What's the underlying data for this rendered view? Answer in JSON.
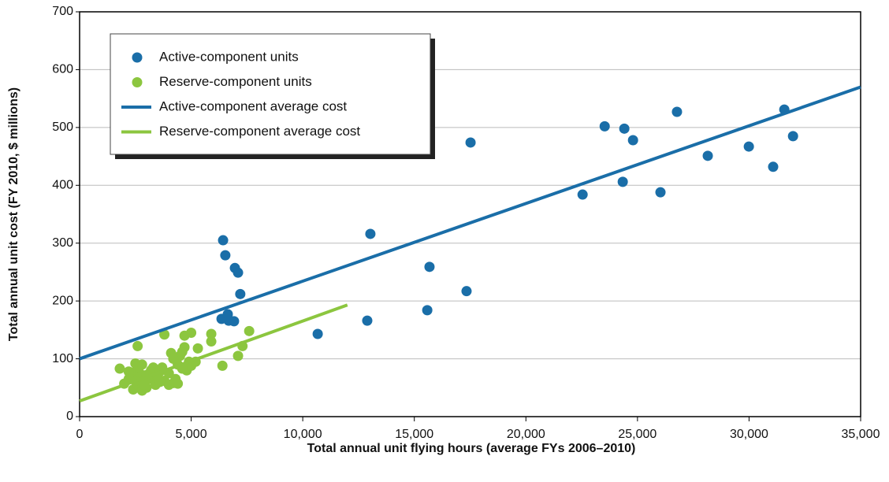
{
  "chart_data": {
    "type": "scatter",
    "xlabel": "Total annual unit flying hours (average FYs 2006–2010)",
    "ylabel": "Total annual unit cost (FY 2010, $ millions)",
    "xlim": [
      0,
      35000
    ],
    "xticks": [
      0,
      {
        "value": 5000,
        "label": "5,000"
      },
      {
        "value": 10000,
        "label": "10,000"
      },
      {
        "value": 15000,
        "label": "15,000"
      },
      {
        "value": 20000,
        "label": "20,000"
      },
      {
        "value": 25000,
        "label": "25,000"
      },
      {
        "value": 30000,
        "label": "30,000"
      },
      {
        "value": 35000,
        "label": "35,000"
      }
    ],
    "ylim": [
      0,
      700
    ],
    "yticks": [
      0,
      100,
      200,
      300,
      400,
      500,
      600,
      700
    ],
    "grid": true,
    "legend": "upper left",
    "series": [
      {
        "name": "Active-component units",
        "color": "#1a6ea8",
        "kind": "scatter",
        "x": [
          6430,
          6530,
          6960,
          7100,
          7200,
          6360,
          6640,
          6680,
          6920,
          10670,
          13030,
          12890,
          15680,
          15580,
          17340,
          17520,
          22540,
          23530,
          24410,
          24340,
          24800,
          26030,
          26770,
          28150,
          29990,
          31080,
          31580,
          31970
        ],
        "values": [
          305,
          279,
          257,
          249,
          212,
          169,
          177,
          166,
          165,
          143,
          316,
          166,
          259,
          184,
          217,
          474,
          384,
          502,
          498,
          406,
          478,
          388,
          527,
          451,
          467,
          432,
          531,
          485
        ]
      },
      {
        "name": "Reserve-component units",
        "color": "#8cc63f",
        "kind": "scatter",
        "x": [
          1800,
          2000,
          2200,
          2400,
          2500,
          2600,
          2550,
          2700,
          2800,
          2900,
          2400,
          2600,
          2800,
          3000,
          3100,
          3200,
          3300,
          3400,
          3500,
          3600,
          3700,
          3800,
          3800,
          4000,
          4100,
          4200,
          4300,
          4400,
          4400,
          4500,
          4600,
          4700,
          4700,
          4800,
          4900,
          5000,
          5000,
          5200,
          5300,
          5900,
          5900,
          6400,
          7100,
          7300,
          7600,
          2700,
          3000,
          2200,
          3300,
          3600,
          4000,
          2500,
          3500,
          2900,
          4200,
          4600
        ],
        "values": [
          83,
          57,
          65,
          70,
          92,
          122,
          80,
          75,
          90,
          60,
          47,
          55,
          45,
          50,
          65,
          80,
          72,
          55,
          68,
          78,
          85,
          62,
          142,
          75,
          110,
          58,
          65,
          90,
          57,
          105,
          112,
          120,
          140,
          80,
          95,
          88,
          145,
          95,
          118,
          143,
          130,
          88,
          105,
          122,
          148,
          68,
          72,
          78,
          85,
          60,
          55,
          62,
          72,
          55,
          100,
          83
        ]
      },
      {
        "name": "Active-component average cost",
        "color": "#1a6ea8",
        "kind": "line",
        "x": [
          0,
          35000
        ],
        "values": [
          100,
          570
        ]
      },
      {
        "name": "Reserve-component average cost",
        "color": "#8cc63f",
        "kind": "line",
        "x": [
          0,
          12000
        ],
        "values": [
          27,
          193
        ]
      }
    ]
  }
}
